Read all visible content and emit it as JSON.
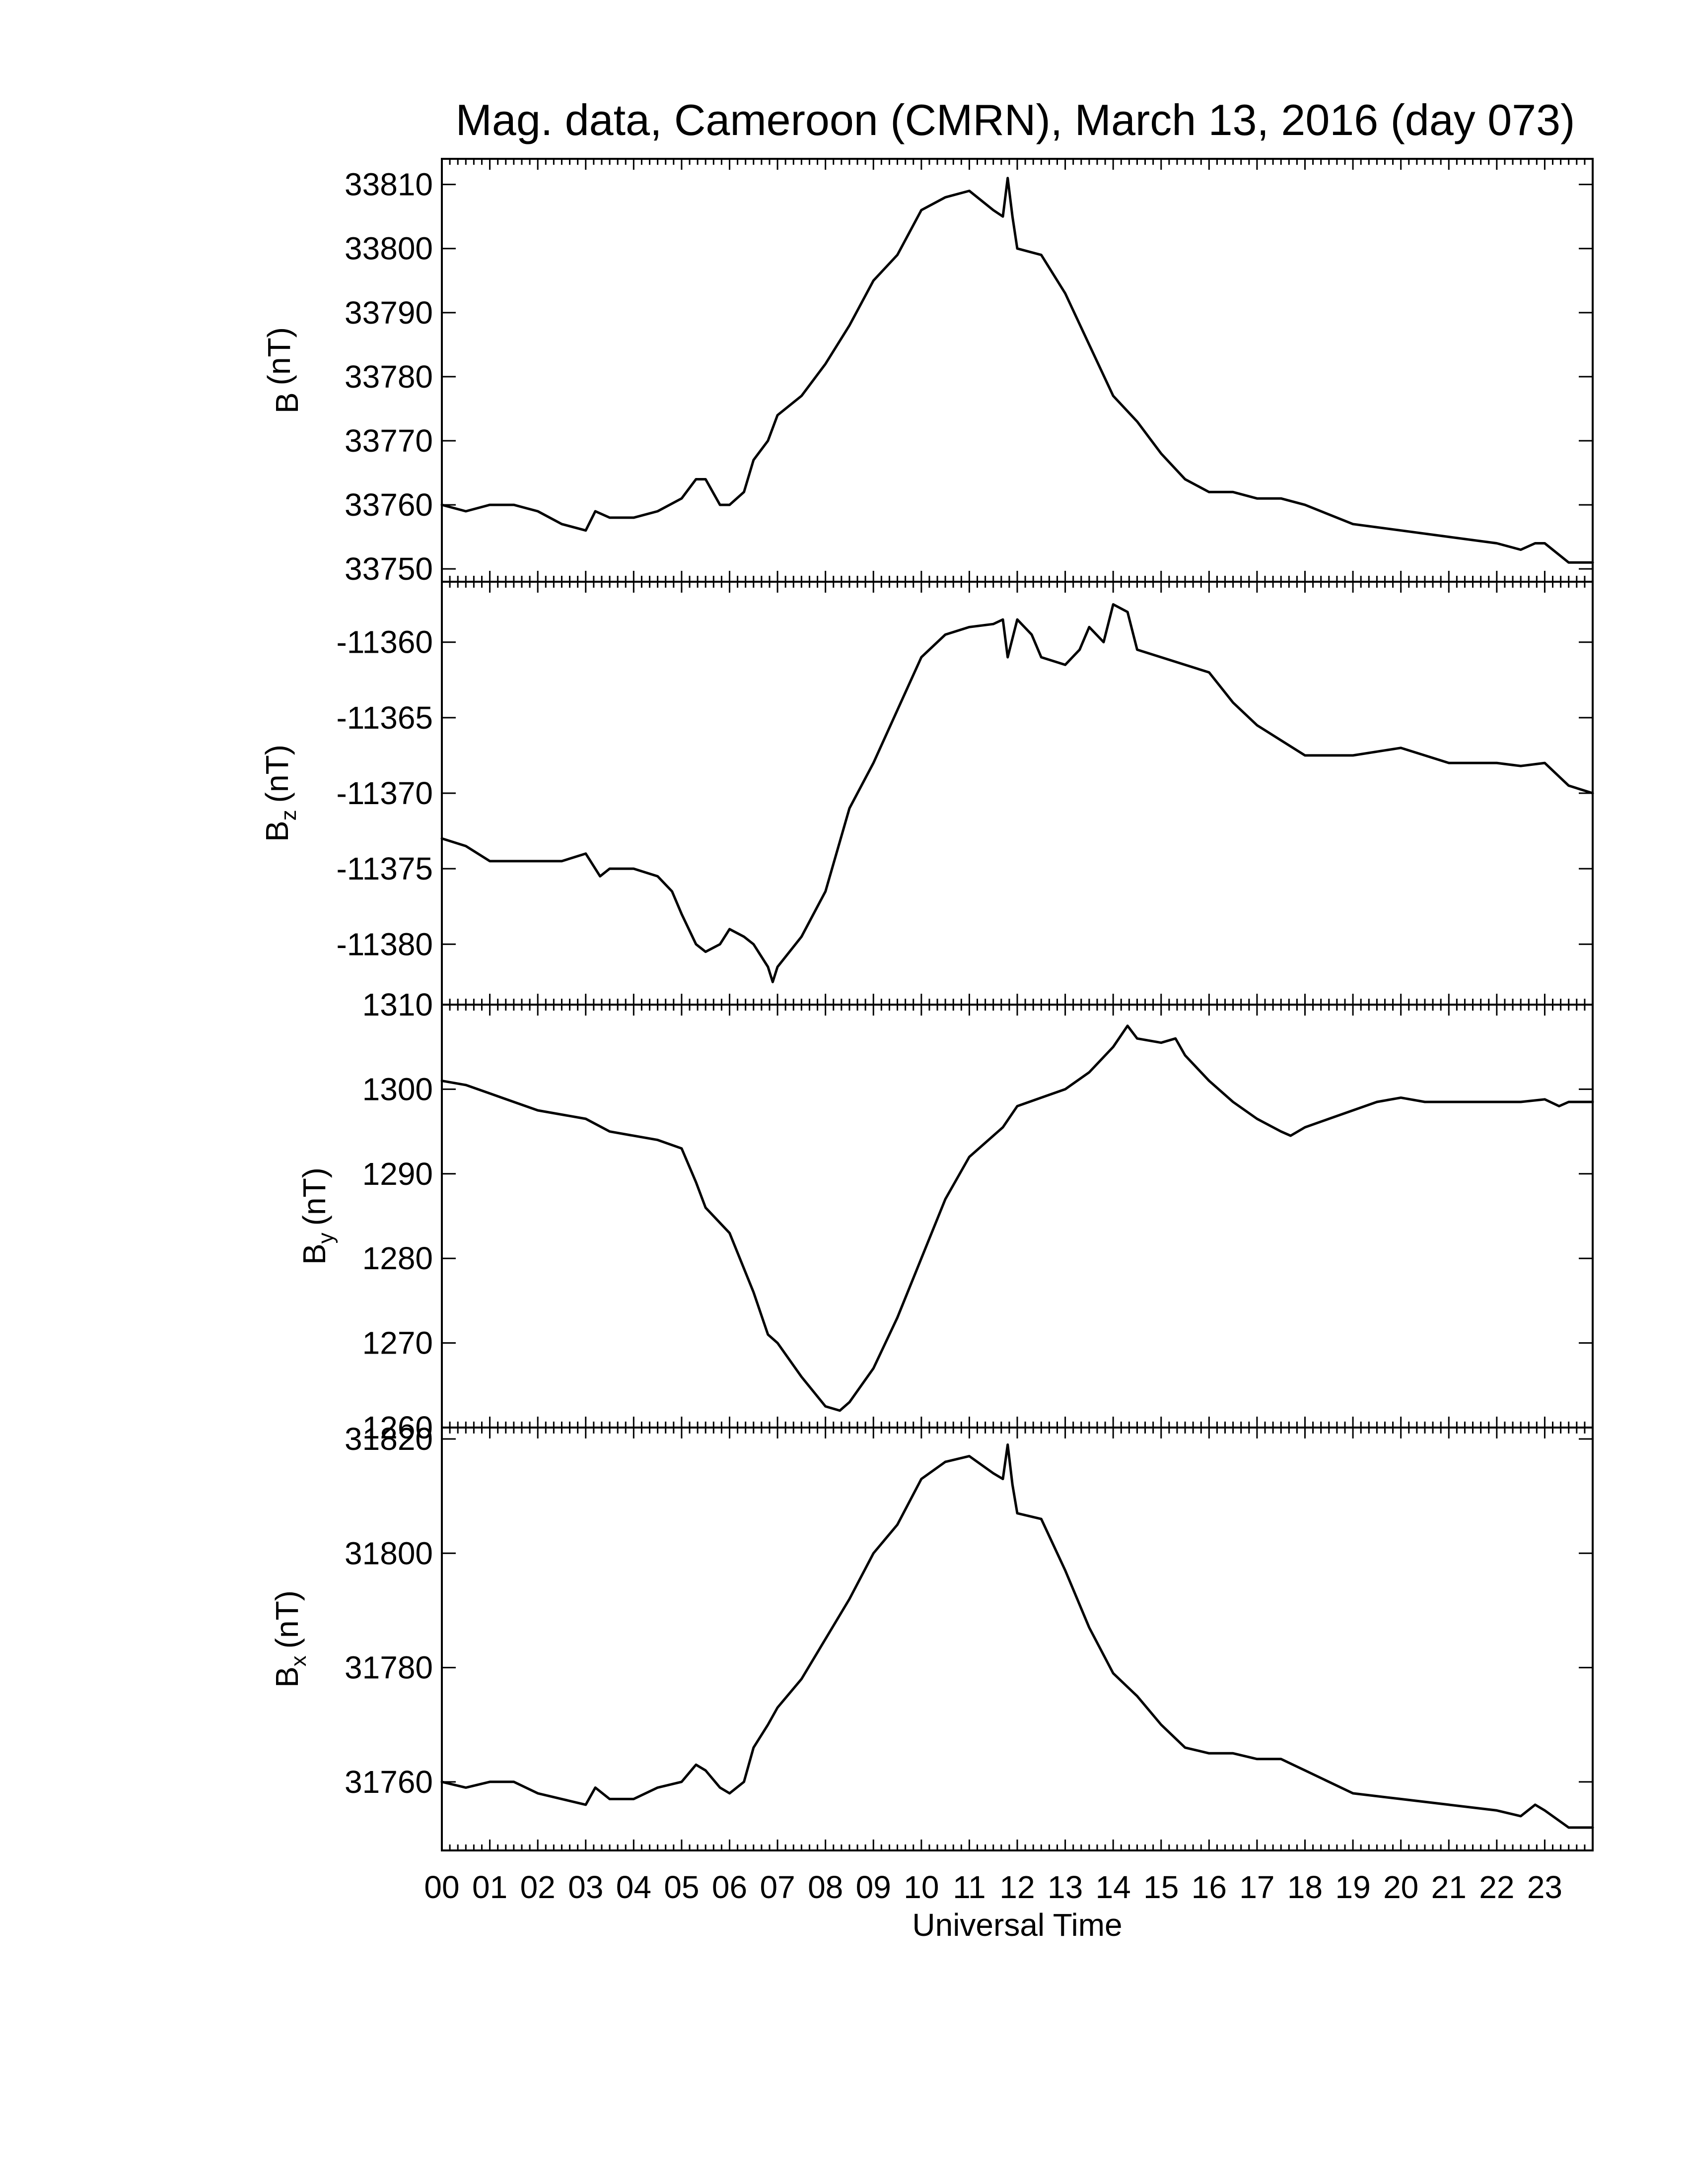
{
  "chart_data": {
    "type": "line",
    "title": "Mag. data, Cameroon (CMRN), March 13, 2016 (day 073)",
    "xlabel": "Universal Time",
    "x_tick_labels": [
      "00",
      "01",
      "02",
      "03",
      "04",
      "05",
      "06",
      "07",
      "08",
      "09",
      "10",
      "11",
      "12",
      "13",
      "14",
      "15",
      "16",
      "17",
      "18",
      "19",
      "20",
      "21",
      "22",
      "23"
    ],
    "xlim": [
      0,
      24
    ],
    "grid": false,
    "line_color": "#000000",
    "panels": [
      {
        "ylabel": "B (nT)",
        "ylabel_main": "B",
        "ylabel_sub": "",
        "ylabel_unit": "(nT)",
        "ylim": [
          33748,
          33814
        ],
        "yticks": [
          33750,
          33760,
          33770,
          33780,
          33790,
          33800,
          33810
        ],
        "ytick_labels": [
          "33750",
          "33760",
          "33770",
          "33780",
          "33790",
          "33800",
          "33810"
        ],
        "x": [
          0.0,
          0.5,
          1.0,
          1.5,
          2.0,
          2.5,
          3.0,
          3.2,
          3.5,
          4.0,
          4.5,
          5.0,
          5.3,
          5.5,
          5.8,
          6.0,
          6.3,
          6.5,
          6.8,
          7.0,
          7.5,
          8.0,
          8.5,
          9.0,
          9.5,
          10.0,
          10.5,
          11.0,
          11.5,
          11.7,
          11.8,
          11.9,
          12.0,
          12.5,
          13.0,
          13.5,
          14.0,
          14.5,
          15.0,
          15.5,
          16.0,
          16.5,
          17.0,
          17.5,
          18.0,
          19.0,
          20.0,
          21.0,
          22.0,
          22.5,
          22.8,
          23.0,
          23.5,
          24.0
        ],
        "values": [
          33760,
          33759,
          33760,
          33760,
          33759,
          33757,
          33756,
          33759,
          33758,
          33758,
          33759,
          33761,
          33764,
          33764,
          33760,
          33760,
          33762,
          33767,
          33770,
          33774,
          33777,
          33782,
          33788,
          33795,
          33799,
          33806,
          33808,
          33809,
          33806,
          33805,
          33811,
          33805,
          33800,
          33799,
          33793,
          33785,
          33777,
          33773,
          33768,
          33764,
          33762,
          33762,
          33761,
          33761,
          33760,
          33757,
          33756,
          33755,
          33754,
          33753,
          33754,
          33754,
          33751,
          33751
        ]
      },
      {
        "ylabel": "Bz (nT)",
        "ylabel_main": "B",
        "ylabel_sub": "z",
        "ylabel_unit": "(nT)",
        "ylim": [
          -11384,
          -11356
        ],
        "yticks": [
          -11380,
          -11375,
          -11370,
          -11365,
          -11360
        ],
        "ytick_labels": [
          "-11380",
          "-11375",
          "-11370",
          "-11365",
          "-11360"
        ],
        "x": [
          0.0,
          0.5,
          1.0,
          1.5,
          2.0,
          2.5,
          3.0,
          3.3,
          3.5,
          4.0,
          4.5,
          4.8,
          5.0,
          5.3,
          5.5,
          5.8,
          6.0,
          6.3,
          6.5,
          6.8,
          6.9,
          7.0,
          7.5,
          8.0,
          8.5,
          9.0,
          9.5,
          10.0,
          10.5,
          11.0,
          11.5,
          11.7,
          11.8,
          12.0,
          12.3,
          12.5,
          13.0,
          13.3,
          13.5,
          13.8,
          14.0,
          14.3,
          14.5,
          15.0,
          15.5,
          16.0,
          16.5,
          17.0,
          17.5,
          18.0,
          19.0,
          20.0,
          21.0,
          22.0,
          22.5,
          23.0,
          23.5,
          24.0
        ],
        "values": [
          -11373,
          -11373.5,
          -11374.5,
          -11374.5,
          -11374.5,
          -11374.5,
          -11374,
          -11375.5,
          -11375,
          -11375,
          -11375.5,
          -11376.5,
          -11378,
          -11380,
          -11380.5,
          -11380,
          -11379,
          -11379.5,
          -11380,
          -11381.5,
          -11382.5,
          -11381.5,
          -11379.5,
          -11376.5,
          -11371,
          -11368,
          -11364.5,
          -11361,
          -11359.5,
          -11359,
          -11358.8,
          -11358.5,
          -11361,
          -11358.5,
          -11359.5,
          -11361,
          -11361.5,
          -11360.5,
          -11359,
          -11360,
          -11357.5,
          -11358,
          -11360.5,
          -11361,
          -11361.5,
          -11362,
          -11364,
          -11365.5,
          -11366.5,
          -11367.5,
          -11367.5,
          -11367,
          -11368,
          -11368,
          -11368.2,
          -11368,
          -11369.5,
          -11370
        ]
      },
      {
        "ylabel": "By (nT)",
        "ylabel_main": "B",
        "ylabel_sub": "y",
        "ylabel_unit": "(nT)",
        "ylim": [
          1260,
          1310
        ],
        "yticks": [
          1260,
          1270,
          1280,
          1290,
          1300,
          1310
        ],
        "ytick_labels": [
          "1260",
          "1270",
          "1280",
          "1290",
          "1300",
          "1310"
        ],
        "x": [
          0.0,
          0.5,
          1.0,
          1.5,
          2.0,
          2.5,
          3.0,
          3.5,
          4.0,
          4.5,
          5.0,
          5.3,
          5.5,
          6.0,
          6.5,
          6.8,
          7.0,
          7.5,
          8.0,
          8.3,
          8.5,
          9.0,
          9.5,
          10.0,
          10.5,
          11.0,
          11.5,
          11.7,
          12.0,
          12.5,
          13.0,
          13.5,
          14.0,
          14.3,
          14.5,
          15.0,
          15.3,
          15.5,
          16.0,
          16.5,
          17.0,
          17.5,
          17.7,
          18.0,
          18.5,
          19.0,
          19.5,
          20.0,
          20.5,
          21.0,
          22.0,
          22.5,
          23.0,
          23.3,
          23.5,
          24.0
        ],
        "values": [
          1301,
          1300.5,
          1299.5,
          1298.5,
          1297.5,
          1297,
          1296.5,
          1295,
          1294.5,
          1294,
          1293,
          1289,
          1286,
          1283,
          1276,
          1271,
          1270,
          1266,
          1262.5,
          1262,
          1263,
          1267,
          1273,
          1280,
          1287,
          1292,
          1294.5,
          1295.5,
          1298,
          1299,
          1300,
          1302,
          1305,
          1307.5,
          1306,
          1305.5,
          1306,
          1304,
          1301,
          1298.5,
          1296.5,
          1295,
          1294.5,
          1295.5,
          1296.5,
          1297.5,
          1298.5,
          1299,
          1298.5,
          1298.5,
          1298.5,
          1298.5,
          1298.8,
          1298,
          1298.5,
          1298.5
        ]
      },
      {
        "ylabel": "Bx (nT)",
        "ylabel_main": "B",
        "ylabel_sub": "x",
        "ylabel_unit": "(nT)",
        "ylim": [
          31748,
          31822
        ],
        "yticks": [
          31760,
          31780,
          31800,
          31820
        ],
        "ytick_labels": [
          "31760",
          "31780",
          "31800",
          "31820"
        ],
        "x": [
          0.0,
          0.5,
          1.0,
          1.5,
          2.0,
          2.5,
          3.0,
          3.2,
          3.5,
          4.0,
          4.5,
          5.0,
          5.3,
          5.5,
          5.8,
          6.0,
          6.3,
          6.5,
          6.8,
          7.0,
          7.5,
          8.0,
          8.5,
          9.0,
          9.5,
          10.0,
          10.5,
          11.0,
          11.5,
          11.7,
          11.8,
          11.9,
          12.0,
          12.5,
          13.0,
          13.5,
          14.0,
          14.5,
          15.0,
          15.5,
          16.0,
          16.5,
          17.0,
          17.5,
          18.0,
          19.0,
          20.0,
          21.0,
          22.0,
          22.5,
          22.8,
          23.0,
          23.5,
          24.0
        ],
        "values": [
          31760,
          31759,
          31760,
          31760,
          31758,
          31757,
          31756,
          31759,
          31757,
          31757,
          31759,
          31760,
          31763,
          31762,
          31759,
          31758,
          31760,
          31766,
          31770,
          31773,
          31778,
          31785,
          31792,
          31800,
          31805,
          31813,
          31816,
          31817,
          31814,
          31813,
          31819,
          31812,
          31807,
          31806,
          31797,
          31787,
          31779,
          31775,
          31770,
          31766,
          31765,
          31765,
          31764,
          31764,
          31762,
          31758,
          31757,
          31756,
          31755,
          31754,
          31756,
          31755,
          31752,
          31752
        ]
      }
    ]
  }
}
